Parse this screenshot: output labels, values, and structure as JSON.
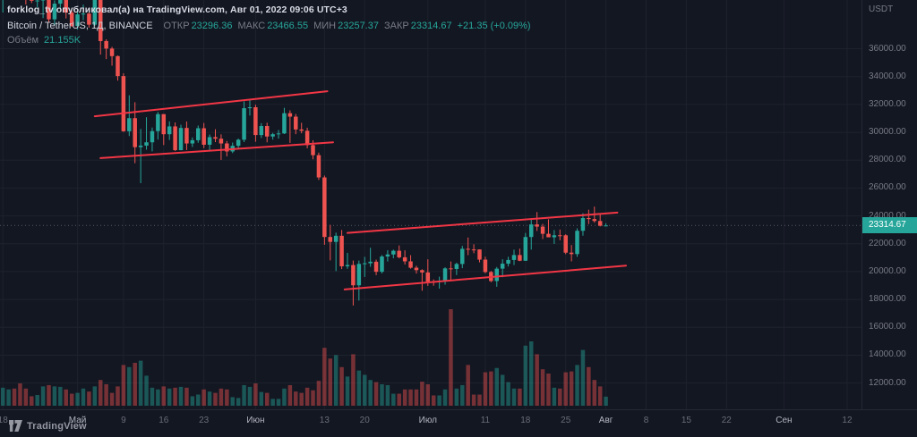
{
  "header": {
    "published_line": "forklog_tv опубликовал(а) на TradingView.com, Авг 01, 2022 09:06 UTC+3",
    "symbol": {
      "symbol_line": "Bitcoin / TetherUS, 1Д, BINANCE",
      "ohlc": [
        {
          "label": "ОТКР",
          "value": "23296.36"
        },
        {
          "label": "МАКС",
          "value": "23466.55"
        },
        {
          "label": "МИН",
          "value": "23257.37"
        },
        {
          "label": "ЗАКР",
          "value": "23314.67"
        }
      ],
      "change": "+21.35 (+0.09%)"
    },
    "volume_row": {
      "label": "Объём",
      "value": "21.155K"
    }
  },
  "axes": {
    "price_unit": "USDT",
    "price_ticks": [
      "36000.00",
      "34000.00",
      "32000.00",
      "30000.00",
      "28000.00",
      "26000.00",
      "24000.00",
      "22000.00",
      "20000.00",
      "18000.00",
      "16000.00",
      "14000.00",
      "12000.00"
    ],
    "time_ticks": [
      {
        "label": "18",
        "day": 0,
        "major": false
      },
      {
        "label": "Май",
        "day": 13,
        "major": true
      },
      {
        "label": "9",
        "day": 21,
        "major": false
      },
      {
        "label": "16",
        "day": 28,
        "major": false
      },
      {
        "label": "23",
        "day": 35,
        "major": false
      },
      {
        "label": "Июн",
        "day": 44,
        "major": true
      },
      {
        "label": "13",
        "day": 56,
        "major": false
      },
      {
        "label": "20",
        "day": 63,
        "major": false
      },
      {
        "label": "Июл",
        "day": 74,
        "major": true
      },
      {
        "label": "11",
        "day": 84,
        "major": false
      },
      {
        "label": "18",
        "day": 91,
        "major": false
      },
      {
        "label": "25",
        "day": 98,
        "major": false
      },
      {
        "label": "Авг",
        "day": 105,
        "major": true
      },
      {
        "label": "8",
        "day": 112,
        "major": false
      },
      {
        "label": "15",
        "day": 119,
        "major": false
      },
      {
        "label": "22",
        "day": 126,
        "major": false
      },
      {
        "label": "Сен",
        "day": 136,
        "major": true
      },
      {
        "label": "12",
        "day": 147,
        "major": false
      }
    ],
    "last_price_badge": "23314.67"
  },
  "watermark": {
    "brand": "TradingView"
  },
  "colors": {
    "bg": "#131722",
    "grid": "#1e222d",
    "up": "#26a69a",
    "down": "#ef5350",
    "trendline": "#f23645",
    "text_muted": "#787b86",
    "text_bright": "#d1d4dc",
    "badge_bg": "#26a69a"
  },
  "chart_data": {
    "type": "candlestick",
    "symbol": "Bitcoin / TetherUS",
    "exchange": "BINANCE",
    "interval": "1Д",
    "price_unit": "USDT",
    "price_range": [
      10500,
      39500
    ],
    "days_span": 150,
    "last_price": 23314.67,
    "last_volume_k": 21.155,
    "candles_format": [
      "date",
      "open",
      "high",
      "low",
      "close",
      "volume_k"
    ],
    "candles": [
      [
        "04-18",
        39700,
        41000,
        38600,
        40801,
        42
      ],
      [
        "04-19",
        40801,
        41750,
        40570,
        41493,
        38
      ],
      [
        "04-20",
        41493,
        42200,
        40900,
        41358,
        40
      ],
      [
        "04-21",
        41358,
        42976,
        39751,
        40480,
        52
      ],
      [
        "04-22",
        40480,
        40790,
        39177,
        39710,
        40
      ],
      [
        "04-23",
        39710,
        39980,
        39285,
        39444,
        22
      ],
      [
        "04-24",
        39444,
        39940,
        38961,
        39465,
        25
      ],
      [
        "04-25",
        39465,
        40616,
        38200,
        40426,
        45
      ],
      [
        "04-26",
        40426,
        40797,
        37881,
        38112,
        48
      ],
      [
        "04-27",
        38112,
        39474,
        37697,
        39235,
        45
      ],
      [
        "04-28",
        39235,
        40372,
        38881,
        39742,
        44
      ],
      [
        "04-29",
        39742,
        39925,
        38175,
        38596,
        38
      ],
      [
        "04-30",
        38596,
        38795,
        37578,
        37630,
        28
      ],
      [
        "05-01",
        37630,
        38675,
        37386,
        38468,
        30
      ],
      [
        "05-02",
        38468,
        39167,
        38052,
        38525,
        40
      ],
      [
        "05-03",
        38525,
        38651,
        37517,
        37728,
        33
      ],
      [
        "05-04",
        37728,
        39902,
        37634,
        39690,
        45
      ],
      [
        "05-05",
        39690,
        39845,
        35579,
        36552,
        60
      ],
      [
        "05-06",
        36552,
        36675,
        35258,
        36013,
        50
      ],
      [
        "05-07",
        36013,
        36134,
        34785,
        35472,
        30
      ],
      [
        "05-08",
        35472,
        35514,
        33713,
        34038,
        45
      ],
      [
        "05-09",
        34038,
        34243,
        30033,
        30077,
        95
      ],
      [
        "05-10",
        30077,
        32658,
        29730,
        31017,
        90
      ],
      [
        "05-11",
        31017,
        32162,
        27785,
        28936,
        100
      ],
      [
        "05-12",
        28936,
        30243,
        26350,
        29047,
        105
      ],
      [
        "05-13",
        29047,
        31083,
        28751,
        29283,
        70
      ],
      [
        "05-14",
        29283,
        30343,
        28630,
        30086,
        42
      ],
      [
        "05-15",
        30086,
        31460,
        29480,
        31305,
        38
      ],
      [
        "05-16",
        31305,
        31308,
        29087,
        29862,
        45
      ],
      [
        "05-17",
        29862,
        30786,
        29450,
        30425,
        40
      ],
      [
        "05-18",
        30425,
        30710,
        28654,
        28720,
        42
      ],
      [
        "05-19",
        28720,
        30545,
        28708,
        30314,
        44
      ],
      [
        "05-20",
        30314,
        30777,
        28730,
        29200,
        42
      ],
      [
        "05-21",
        29200,
        29632,
        28948,
        29432,
        22
      ],
      [
        "05-22",
        29432,
        30487,
        29250,
        30293,
        26
      ],
      [
        "05-23",
        30293,
        30670,
        28866,
        29109,
        38
      ],
      [
        "05-24",
        29109,
        29845,
        28690,
        29655,
        33
      ],
      [
        "05-25",
        29655,
        30224,
        29300,
        29542,
        30
      ],
      [
        "05-26",
        29542,
        29856,
        28020,
        29201,
        40
      ],
      [
        "05-27",
        29201,
        29378,
        28273,
        28627,
        38
      ],
      [
        "05-28",
        28627,
        29268,
        28509,
        29031,
        20
      ],
      [
        "05-29",
        29031,
        29550,
        28839,
        29468,
        18
      ],
      [
        "05-30",
        29468,
        32222,
        29299,
        31734,
        48
      ],
      [
        "05-31",
        31734,
        32399,
        31205,
        31801,
        44
      ],
      [
        "06-01",
        31801,
        31982,
        29324,
        29805,
        52
      ],
      [
        "06-02",
        29805,
        30658,
        29594,
        30452,
        32
      ],
      [
        "06-03",
        30452,
        30689,
        29282,
        29700,
        30
      ],
      [
        "06-04",
        29700,
        29958,
        29478,
        29864,
        16
      ],
      [
        "06-05",
        29864,
        30167,
        29552,
        29919,
        16
      ],
      [
        "06-06",
        29919,
        31758,
        29878,
        31373,
        40
      ],
      [
        "06-07",
        31373,
        31580,
        29242,
        31125,
        48
      ],
      [
        "06-08",
        31125,
        31316,
        29866,
        30205,
        33
      ],
      [
        "06-09",
        30205,
        30685,
        29932,
        30111,
        30
      ],
      [
        "06-10",
        30111,
        30329,
        28852,
        29083,
        42
      ],
      [
        "06-11",
        29083,
        29430,
        28064,
        28360,
        36
      ],
      [
        "06-12",
        28360,
        28544,
        26580,
        26762,
        58
      ],
      [
        "06-13",
        26762,
        26895,
        21926,
        22487,
        135
      ],
      [
        "06-14",
        22487,
        23362,
        20805,
        22135,
        110
      ],
      [
        "06-15",
        22135,
        22795,
        20037,
        22572,
        118
      ],
      [
        "06-16",
        22572,
        22990,
        20183,
        20381,
        90
      ],
      [
        "06-17",
        20381,
        21346,
        20203,
        20471,
        68
      ],
      [
        "06-18",
        20471,
        20792,
        17567,
        19017,
        120
      ],
      [
        "06-19",
        19017,
        20793,
        17921,
        20553,
        82
      ],
      [
        "06-20",
        20553,
        21060,
        19616,
        20599,
        72
      ],
      [
        "06-21",
        20599,
        21711,
        20349,
        20710,
        60
      ],
      [
        "06-22",
        20710,
        20860,
        19747,
        19987,
        55
      ],
      [
        "06-23",
        19987,
        21189,
        19875,
        21085,
        50
      ],
      [
        "06-24",
        21085,
        21540,
        20727,
        21231,
        48
      ],
      [
        "06-25",
        21231,
        21580,
        20957,
        21496,
        28
      ],
      [
        "06-26",
        21496,
        21880,
        20951,
        21028,
        28
      ],
      [
        "06-27",
        21028,
        21528,
        20510,
        20735,
        38
      ],
      [
        "06-28",
        20735,
        21180,
        20212,
        20280,
        38
      ],
      [
        "06-29",
        20280,
        20422,
        19858,
        20104,
        38
      ],
      [
        "06-30",
        20104,
        20167,
        18630,
        19942,
        56
      ],
      [
        "07-01",
        19942,
        20886,
        18975,
        19279,
        50
      ],
      [
        "07-02",
        19279,
        19439,
        18984,
        19252,
        24
      ],
      [
        "07-03",
        19252,
        19637,
        18781,
        19315,
        24
      ],
      [
        "07-04",
        19315,
        20312,
        19062,
        20231,
        38
      ],
      [
        "07-05",
        20231,
        20730,
        19313,
        20190,
        225
      ],
      [
        "07-06",
        20190,
        20640,
        19756,
        20548,
        40
      ],
      [
        "07-07",
        20548,
        21845,
        20247,
        21637,
        48
      ],
      [
        "07-08",
        21637,
        22448,
        21184,
        21592,
        95
      ],
      [
        "07-09",
        21592,
        21964,
        21319,
        21591,
        26
      ],
      [
        "07-10",
        21591,
        21599,
        20665,
        20860,
        26
      ],
      [
        "07-11",
        20860,
        21073,
        19884,
        19970,
        78
      ],
      [
        "07-12",
        19970,
        20046,
        19240,
        19323,
        80
      ],
      [
        "07-13",
        19323,
        20331,
        18910,
        20212,
        88
      ],
      [
        "07-14",
        20212,
        20890,
        19598,
        20569,
        72
      ],
      [
        "07-15",
        20569,
        21065,
        20368,
        20836,
        55
      ],
      [
        "07-16",
        20836,
        21577,
        20471,
        21190,
        40
      ],
      [
        "07-17",
        21190,
        21650,
        20750,
        20781,
        40
      ],
      [
        "07-18",
        20781,
        22777,
        20762,
        22485,
        140
      ],
      [
        "07-19",
        22485,
        23800,
        21579,
        23389,
        150
      ],
      [
        "07-20",
        23389,
        24276,
        22920,
        23231,
        120
      ],
      [
        "07-21",
        23231,
        23429,
        22341,
        22714,
        85
      ],
      [
        "07-22",
        22714,
        23750,
        22500,
        22465,
        75
      ],
      [
        "07-23",
        22465,
        22984,
        21990,
        22609,
        42
      ],
      [
        "07-24",
        22609,
        23019,
        22251,
        22607,
        40
      ],
      [
        "07-25",
        22607,
        22680,
        21252,
        21361,
        78
      ],
      [
        "07-26",
        21361,
        21906,
        20735,
        21258,
        80
      ],
      [
        "07-27",
        21258,
        23110,
        21062,
        22930,
        95
      ],
      [
        "07-28",
        22930,
        24189,
        22580,
        23843,
        130
      ],
      [
        "07-29",
        23843,
        24444,
        23412,
        23773,
        90
      ],
      [
        "07-30",
        23773,
        24668,
        23516,
        23634,
        60
      ],
      [
        "07-31",
        23634,
        24194,
        23243,
        23293,
        45
      ],
      [
        "08-01",
        23296.36,
        23466.55,
        23257.37,
        23314.67,
        21.155
      ]
    ],
    "trendlines": [
      {
        "d1": 16,
        "p1": 31150,
        "d2": 56.5,
        "p2": 32950
      },
      {
        "d1": 17,
        "p1": 28150,
        "d2": 57.5,
        "p2": 29280
      },
      {
        "d1": 60,
        "p1": 22780,
        "d2": 107,
        "p2": 24240
      },
      {
        "d1": 59.5,
        "p1": 18720,
        "d2": 108.5,
        "p2": 20430
      }
    ]
  }
}
